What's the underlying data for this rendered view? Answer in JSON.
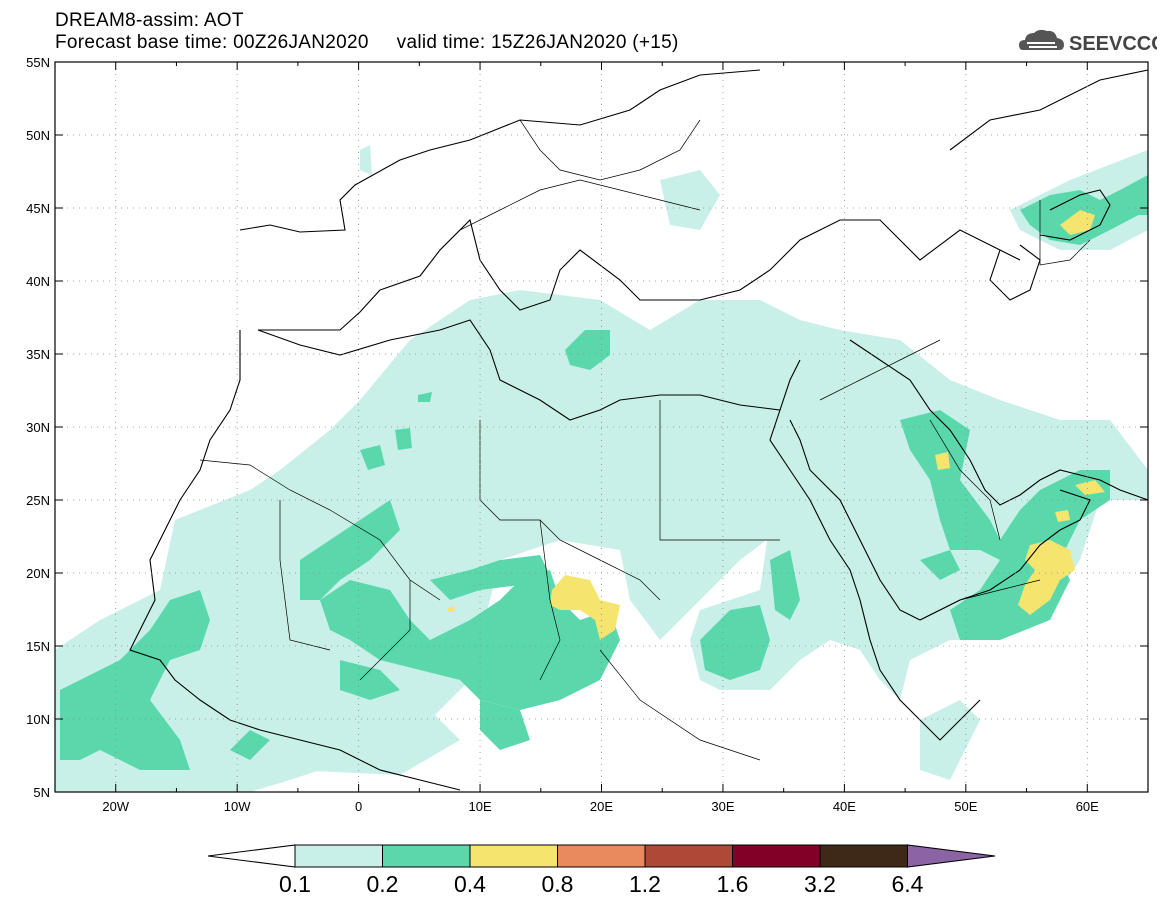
{
  "header": {
    "title_line1": "DREAM8-assim: AOT",
    "title_line2": "Forecast base time: 00Z26JAN2020     valid time: 15Z26JAN2020 (+15)",
    "logo_text": "SEEVCCC",
    "logo_icon": "cloud-icon"
  },
  "map": {
    "variable": "AOT",
    "lon_range": [
      -25,
      65
    ],
    "lat_range": [
      5,
      55
    ],
    "lat_ticks": [
      "5N",
      "10N",
      "15N",
      "20N",
      "25N",
      "30N",
      "35N",
      "40N",
      "45N",
      "50N",
      "55N"
    ],
    "lon_ticks": [
      "20W",
      "10W",
      "0",
      "10E",
      "20E",
      "30E",
      "40E",
      "50E",
      "60E"
    ],
    "grid": true
  },
  "colorbar": {
    "labels": [
      "0.1",
      "0.2",
      "0.4",
      "0.8",
      "1.2",
      "1.6",
      "3.2",
      "6.4"
    ],
    "colors": [
      "#c8f0e8",
      "#5ad8ac",
      "#f5e46e",
      "#e88a5e",
      "#b04838",
      "#820028",
      "#3e2818",
      "#8c64a4"
    ],
    "under_color": "#ffffff"
  }
}
